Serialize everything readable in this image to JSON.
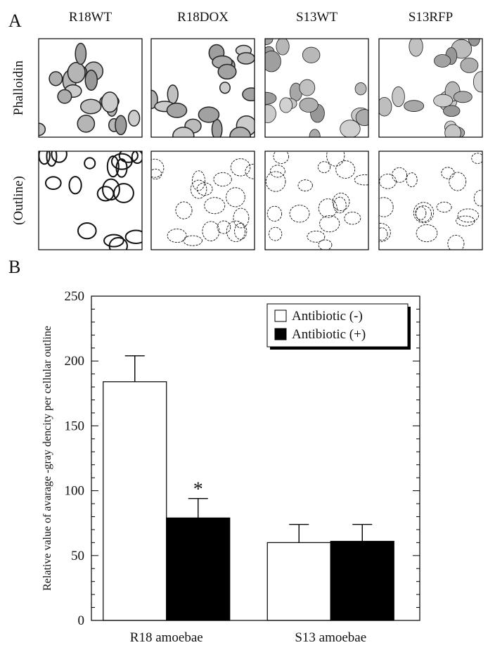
{
  "panel_a": {
    "label": "A",
    "columns": [
      "R18WT",
      "R18DOX",
      "S13WT",
      "S13RFP"
    ],
    "rows": [
      "Phalloidin",
      "(Outline)"
    ]
  },
  "chart_data": {
    "type": "bar",
    "label": "B",
    "ylabel": "Relative value of avarage -gray dencity per cellular outline",
    "categories": [
      "R18 amoebae",
      "S13 amoebae"
    ],
    "series": [
      {
        "name": "Antibiotic (-)",
        "color": "#ffffff",
        "values": [
          184,
          60
        ],
        "errors": [
          20,
          14
        ]
      },
      {
        "name": "Antibiotic (+)",
        "color": "#000000",
        "values": [
          79,
          61
        ],
        "errors": [
          15,
          13
        ]
      }
    ],
    "annotations": [
      {
        "text": "*",
        "category": 0,
        "series": 1
      }
    ],
    "ylim": [
      0,
      250
    ],
    "yticks": [
      0,
      50,
      100,
      150,
      200,
      250
    ],
    "minor_yticks": [
      10,
      20,
      30,
      40,
      60,
      70,
      80,
      90,
      110,
      120,
      130,
      140,
      160,
      170,
      180,
      190,
      210,
      220,
      230,
      240
    ],
    "legend": "upper right"
  }
}
